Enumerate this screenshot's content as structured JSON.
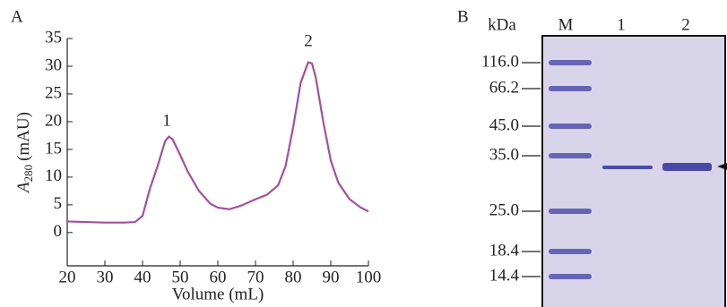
{
  "chart_data": {
    "type": "line",
    "panel": "A",
    "x_label": "Volume (mL)",
    "y_label": [
      "A",
      "280",
      "(mAU)"
    ],
    "annotations": [
      "1",
      "2"
    ],
    "x": [
      20,
      25,
      30,
      35,
      38,
      40,
      42,
      44,
      46,
      47,
      48,
      50,
      52,
      55,
      58,
      60,
      63,
      66,
      70,
      73,
      76,
      78,
      80,
      82,
      84,
      85,
      86,
      88,
      90,
      92,
      95,
      98,
      100
    ],
    "series": [
      {
        "color": "#a3509f",
        "values": [
          2.0,
          1.9,
          1.8,
          1.8,
          1.9,
          3.0,
          8.0,
          12.0,
          16.5,
          17.3,
          16.8,
          14.0,
          11.0,
          7.5,
          5.2,
          4.5,
          4.2,
          4.8,
          6.0,
          6.8,
          8.5,
          12.0,
          19.0,
          27.0,
          30.7,
          30.5,
          28.0,
          20.0,
          13.0,
          9.0,
          6.0,
          4.5,
          3.8
        ]
      }
    ],
    "xlim": [
      20,
      100
    ],
    "xticks": [
      20,
      30,
      40,
      50,
      60,
      70,
      80,
      90,
      100
    ],
    "ylim": [
      -6,
      35
    ],
    "yticks": [
      0,
      5,
      10,
      15,
      20,
      25,
      30,
      35
    ]
  },
  "gel": {
    "panel": "B",
    "unit": "kDa",
    "lanes": [
      "M",
      "1",
      "2"
    ],
    "marker_labels": [
      "116.0",
      "66.2",
      "45.0",
      "35.0",
      "25.0",
      "18.4",
      "14.4"
    ]
  }
}
